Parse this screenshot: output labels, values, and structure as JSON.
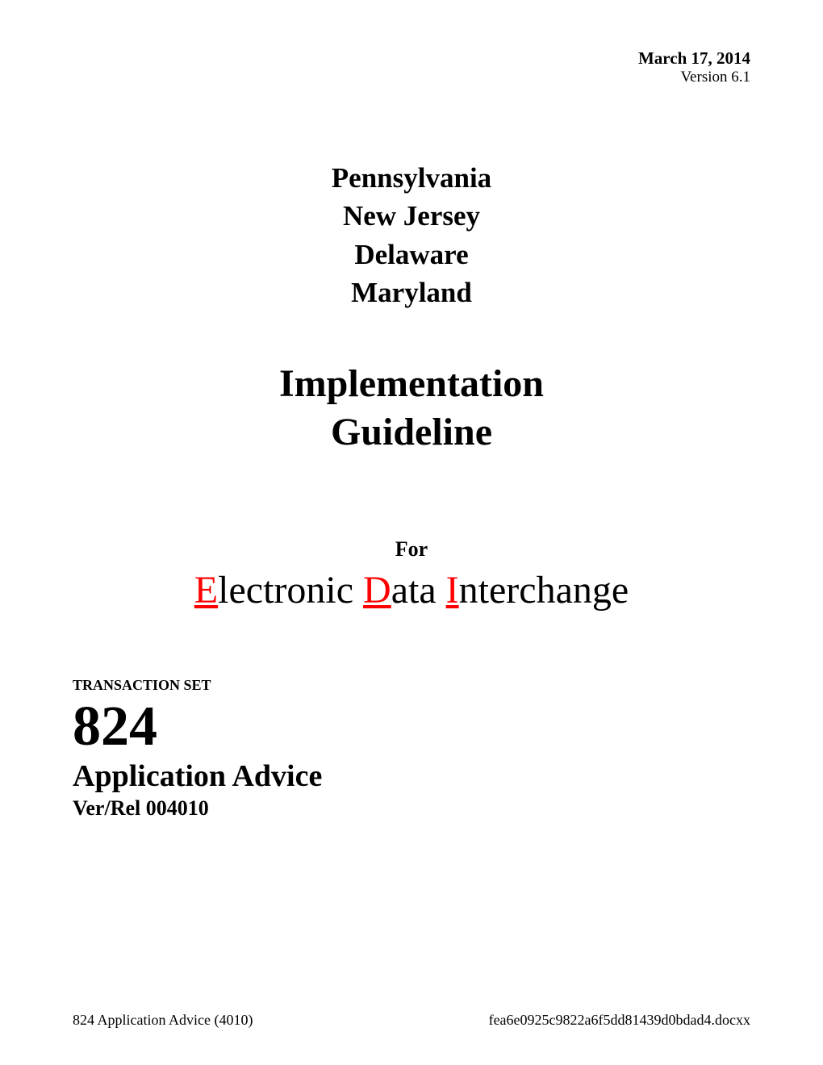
{
  "header": {
    "date": "March 17, 2014",
    "version": "Version 6.1"
  },
  "states": {
    "line1": "Pennsylvania",
    "line2": "New Jersey",
    "line3": "Delaware",
    "line4": "Maryland"
  },
  "title": {
    "line1": "Implementation",
    "line2": "Guideline"
  },
  "for_label": "For",
  "edi": {
    "e_cap": "E",
    "e_rest": "lectronic ",
    "d_cap": "D",
    "d_rest": "ata ",
    "i_cap": "I",
    "i_rest": "nterchange"
  },
  "transaction": {
    "label": "TRANSACTION SET",
    "number": "824",
    "name": "Application Advice",
    "ver_rel": "Ver/Rel 004010"
  },
  "footer": {
    "left": "824 Application Advice (4010)",
    "right": "fea6e0925c9822a6f5dd81439d0bdad4.docxx"
  }
}
